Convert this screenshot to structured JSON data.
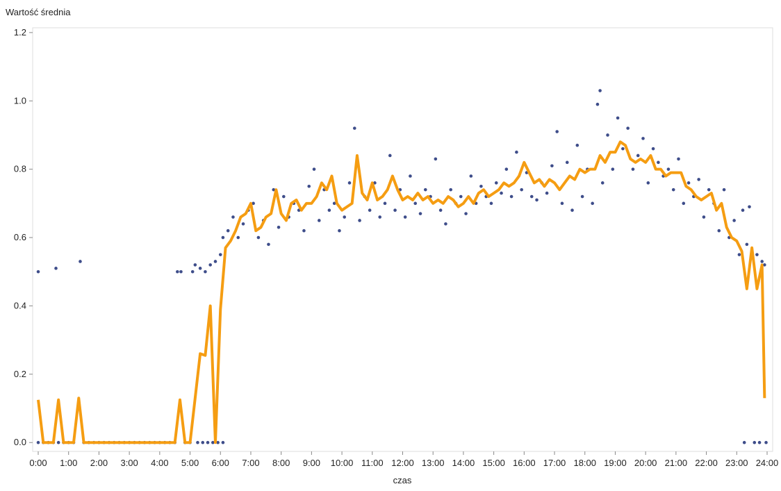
{
  "chart_data": {
    "type": "scatter-line",
    "title": "Wartość średnia",
    "x_label": "czas",
    "xlim": [
      -11,
      1451
    ],
    "ylim": [
      -0.026,
      1.214
    ],
    "xticks": [
      {
        "value": 0,
        "label": "0:00"
      },
      {
        "value": 60,
        "label": "1:00"
      },
      {
        "value": 120,
        "label": "2:00"
      },
      {
        "value": 180,
        "label": "3:00"
      },
      {
        "value": 240,
        "label": "4:00"
      },
      {
        "value": 300,
        "label": "5:00"
      },
      {
        "value": 360,
        "label": "6:00"
      },
      {
        "value": 420,
        "label": "7:00"
      },
      {
        "value": 480,
        "label": "8:00"
      },
      {
        "value": 540,
        "label": "9:00"
      },
      {
        "value": 600,
        "label": "10:00"
      },
      {
        "value": 660,
        "label": "11:00"
      },
      {
        "value": 720,
        "label": "12:00"
      },
      {
        "value": 780,
        "label": "13:00"
      },
      {
        "value": 840,
        "label": "14:00"
      },
      {
        "value": 900,
        "label": "15:00"
      },
      {
        "value": 960,
        "label": "16:00"
      },
      {
        "value": 1020,
        "label": "17:00"
      },
      {
        "value": 1080,
        "label": "18:00"
      },
      {
        "value": 1140,
        "label": "19:00"
      },
      {
        "value": 1200,
        "label": "20:00"
      },
      {
        "value": 1260,
        "label": "21:00"
      },
      {
        "value": 1320,
        "label": "22:00"
      },
      {
        "value": 1380,
        "label": "23:00"
      },
      {
        "value": 1440,
        "label": "24:00"
      }
    ],
    "yticks": [
      {
        "value": 0,
        "label": "0.0"
      },
      {
        "value": 0.2,
        "label": "0.2"
      },
      {
        "value": 0.4,
        "label": "0.4"
      },
      {
        "value": 0.6,
        "label": "0.6"
      },
      {
        "value": 0.8,
        "label": "0.8"
      },
      {
        "value": 1,
        "label": "1.0"
      },
      {
        "value": 1.2,
        "label": "1.2"
      }
    ],
    "series": [
      {
        "kind": "scatter",
        "color": "#3e4d8a",
        "x": [
          0,
          0,
          10,
          20,
          30,
          35,
          40,
          50,
          60,
          70,
          83,
          90,
          100,
          110,
          120,
          130,
          140,
          150,
          160,
          170,
          180,
          190,
          200,
          210,
          220,
          230,
          240,
          250,
          260,
          270,
          275,
          282,
          290,
          300,
          305,
          310,
          315,
          320,
          325,
          330,
          335,
          340,
          345,
          350,
          355,
          360,
          365,
          365,
          375,
          385,
          395,
          405,
          415,
          425,
          435,
          445,
          455,
          465,
          475,
          485,
          495,
          505,
          515,
          525,
          535,
          545,
          555,
          565,
          575,
          585,
          595,
          605,
          615,
          625,
          635,
          645,
          655,
          665,
          675,
          685,
          695,
          705,
          715,
          725,
          735,
          745,
          755,
          765,
          775,
          785,
          795,
          805,
          815,
          825,
          835,
          845,
          855,
          865,
          875,
          885,
          895,
          905,
          915,
          925,
          935,
          945,
          955,
          965,
          975,
          985,
          995,
          1005,
          1015,
          1025,
          1035,
          1045,
          1055,
          1065,
          1075,
          1085,
          1095,
          1105,
          1110,
          1115,
          1125,
          1135,
          1145,
          1155,
          1165,
          1175,
          1185,
          1195,
          1205,
          1215,
          1225,
          1235,
          1245,
          1255,
          1265,
          1275,
          1285,
          1295,
          1305,
          1315,
          1325,
          1335,
          1345,
          1355,
          1365,
          1375,
          1385,
          1392,
          1395,
          1400,
          1405,
          1410,
          1415,
          1420,
          1425,
          1430,
          1435,
          1438
        ],
        "values": [
          0.5,
          0,
          0,
          0,
          0,
          0.51,
          0,
          0,
          0,
          0,
          0.53,
          0,
          0,
          0,
          0,
          0,
          0,
          0,
          0,
          0,
          0,
          0,
          0,
          0,
          0,
          0,
          0,
          0,
          0,
          0,
          0.5,
          0.5,
          0,
          0,
          0.5,
          0.52,
          0,
          0.51,
          0,
          0.5,
          0,
          0.52,
          0,
          0.53,
          0,
          0.55,
          0,
          0.6,
          0.62,
          0.66,
          0.6,
          0.64,
          0.68,
          0.7,
          0.6,
          0.65,
          0.58,
          0.74,
          0.63,
          0.72,
          0.66,
          0.7,
          0.68,
          0.62,
          0.75,
          0.8,
          0.65,
          0.74,
          0.68,
          0.7,
          0.62,
          0.66,
          0.76,
          0.92,
          0.65,
          0.72,
          0.68,
          0.76,
          0.66,
          0.7,
          0.84,
          0.68,
          0.74,
          0.66,
          0.78,
          0.7,
          0.67,
          0.74,
          0.72,
          0.83,
          0.68,
          0.64,
          0.74,
          0.7,
          0.72,
          0.67,
          0.78,
          0.7,
          0.75,
          0.72,
          0.7,
          0.76,
          0.73,
          0.8,
          0.72,
          0.85,
          0.74,
          0.79,
          0.72,
          0.71,
          0.76,
          0.73,
          0.81,
          0.91,
          0.7,
          0.82,
          0.68,
          0.87,
          0.72,
          0.8,
          0.7,
          0.99,
          1.03,
          0.76,
          0.9,
          0.8,
          0.95,
          0.86,
          0.92,
          0.8,
          0.84,
          0.89,
          0.76,
          0.86,
          0.82,
          0.78,
          0.8,
          0.74,
          0.83,
          0.7,
          0.76,
          0.72,
          0.77,
          0.66,
          0.74,
          0.7,
          0.62,
          0.74,
          0.6,
          0.65,
          0.55,
          0.68,
          0,
          0.58,
          0.69,
          0.54,
          0,
          0.55,
          0,
          0.53,
          0.52,
          0
        ]
      },
      {
        "kind": "line",
        "color": "#f59d12",
        "x": [
          0,
          10,
          20,
          30,
          40,
          50,
          60,
          70,
          80,
          90,
          100,
          110,
          120,
          130,
          140,
          150,
          160,
          170,
          180,
          190,
          200,
          210,
          220,
          230,
          240,
          250,
          260,
          270,
          280,
          290,
          300,
          310,
          320,
          330,
          340,
          350,
          360,
          370,
          380,
          390,
          400,
          410,
          420,
          430,
          440,
          450,
          460,
          470,
          480,
          490,
          500,
          510,
          520,
          530,
          540,
          550,
          560,
          570,
          580,
          590,
          600,
          610,
          620,
          630,
          640,
          650,
          660,
          670,
          680,
          690,
          700,
          710,
          720,
          730,
          740,
          750,
          760,
          770,
          780,
          790,
          800,
          810,
          820,
          830,
          840,
          850,
          860,
          870,
          880,
          890,
          900,
          910,
          920,
          930,
          940,
          950,
          960,
          970,
          980,
          990,
          1000,
          1010,
          1020,
          1030,
          1040,
          1050,
          1060,
          1070,
          1080,
          1090,
          1100,
          1110,
          1120,
          1130,
          1140,
          1150,
          1160,
          1170,
          1180,
          1190,
          1200,
          1210,
          1220,
          1230,
          1240,
          1250,
          1260,
          1270,
          1280,
          1290,
          1300,
          1310,
          1320,
          1330,
          1340,
          1350,
          1360,
          1370,
          1380,
          1390,
          1400,
          1410,
          1420,
          1430,
          1435
        ],
        "values": [
          0.125,
          0,
          0,
          0,
          0.125,
          0,
          0,
          0,
          0.13,
          0,
          0,
          0,
          0,
          0,
          0,
          0,
          0,
          0,
          0,
          0,
          0,
          0,
          0,
          0,
          0,
          0,
          0,
          0,
          0.125,
          0,
          0,
          0.13,
          0.26,
          0.255,
          0.4,
          0,
          0.39,
          0.57,
          0.59,
          0.62,
          0.66,
          0.67,
          0.7,
          0.62,
          0.63,
          0.66,
          0.67,
          0.74,
          0.67,
          0.65,
          0.7,
          0.71,
          0.68,
          0.7,
          0.7,
          0.72,
          0.76,
          0.74,
          0.78,
          0.7,
          0.68,
          0.69,
          0.7,
          0.84,
          0.73,
          0.71,
          0.76,
          0.71,
          0.72,
          0.74,
          0.78,
          0.74,
          0.71,
          0.72,
          0.71,
          0.73,
          0.71,
          0.72,
          0.7,
          0.71,
          0.7,
          0.72,
          0.71,
          0.69,
          0.7,
          0.72,
          0.7,
          0.73,
          0.74,
          0.72,
          0.73,
          0.74,
          0.76,
          0.75,
          0.76,
          0.78,
          0.82,
          0.79,
          0.76,
          0.77,
          0.75,
          0.77,
          0.76,
          0.74,
          0.76,
          0.78,
          0.77,
          0.8,
          0.79,
          0.8,
          0.8,
          0.84,
          0.82,
          0.85,
          0.85,
          0.88,
          0.87,
          0.83,
          0.82,
          0.83,
          0.82,
          0.84,
          0.8,
          0.8,
          0.78,
          0.79,
          0.79,
          0.79,
          0.75,
          0.74,
          0.72,
          0.71,
          0.72,
          0.73,
          0.68,
          0.7,
          0.63,
          0.6,
          0.59,
          0.56,
          0.45,
          0.57,
          0.45,
          0.52,
          0.13
        ]
      }
    ]
  }
}
